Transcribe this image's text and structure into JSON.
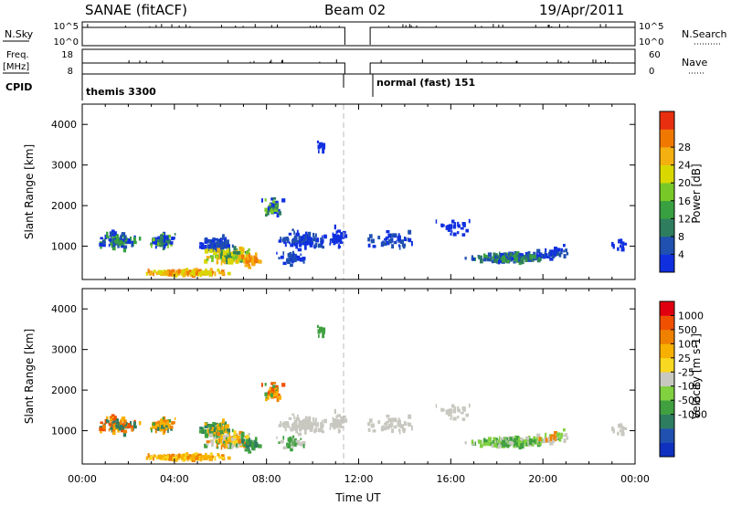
{
  "header": {
    "title": "SANAE (fitACF)",
    "beam": "Beam 02",
    "date": "19/Apr/2011"
  },
  "top_panels": {
    "nsky_label": "N.Sky",
    "nsearch_label": "N.Search",
    "freq_label_line1": "Freq.",
    "freq_label_line2": "[MHz]",
    "nave_label": "Nave",
    "cpid_label": "CPID",
    "nsky_ticks": [
      "10^5",
      "10^0"
    ],
    "nsearch_ticks": [
      "10^5",
      "10^0"
    ],
    "freq_ticks": [
      "18",
      "8"
    ],
    "nave_ticks": [
      "60",
      "0"
    ],
    "cpid_segments": [
      {
        "label": "themis 3300",
        "start_h": 0.0,
        "end_h": 11.4
      },
      {
        "label": "normal (fast) 151",
        "start_h": 12.5,
        "end_h": 24.0
      }
    ]
  },
  "colors": {
    "power": [
      "#1030e0",
      "#2050b0",
      "#2e7d5e",
      "#38a040",
      "#78c828",
      "#d8d800",
      "#f4b010",
      "#f07800",
      "#e83010"
    ],
    "velocity": [
      "#e00010",
      "#f05000",
      "#f08000",
      "#f8b000",
      "#f8d820",
      "#c8c8c0",
      "#80d040",
      "#40a040",
      "#2e7d60",
      "#2050b0",
      "#1030c0"
    ]
  },
  "chart_data": [
    {
      "type": "heatmap",
      "name": "power",
      "xlabel": "",
      "ylabel": "Slant Range [km]",
      "xlim": [
        0,
        24
      ],
      "ylim": [
        180,
        4500
      ],
      "yticks": [
        "1000",
        "2000",
        "3000",
        "4000"
      ],
      "colorbar_label": "Power [dB]",
      "colorbar_ticks": [
        "4",
        "8",
        "12",
        "16",
        "20",
        "24",
        "28"
      ],
      "clim": [
        0,
        32
      ],
      "blobs": [
        {
          "t": 1.5,
          "r": 1150,
          "dt": 1.1,
          "dr": 260,
          "n": 95,
          "lvl": [
            0,
            1,
            3
          ]
        },
        {
          "t": 3.4,
          "r": 1100,
          "dt": 0.7,
          "dr": 240,
          "n": 80,
          "lvl": [
            0,
            2,
            4
          ]
        },
        {
          "t": 5.8,
          "r": 1050,
          "dt": 0.9,
          "dr": 230,
          "n": 80,
          "lvl": [
            0,
            1
          ]
        },
        {
          "t": 6.3,
          "r": 750,
          "dt": 1.3,
          "dr": 260,
          "n": 150,
          "lvl": [
            2,
            4,
            5,
            6
          ]
        },
        {
          "t": 4.4,
          "r": 350,
          "dt": 2.2,
          "dr": 100,
          "n": 130,
          "lvl": [
            5,
            6,
            7
          ]
        },
        {
          "t": 7.3,
          "r": 640,
          "dt": 0.5,
          "dr": 180,
          "n": 40,
          "lvl": [
            6,
            7
          ]
        },
        {
          "t": 8.2,
          "r": 1950,
          "dt": 0.5,
          "dr": 280,
          "n": 55,
          "lvl": [
            0,
            2,
            4
          ]
        },
        {
          "t": 9.6,
          "r": 1150,
          "dt": 1.6,
          "dr": 300,
          "n": 90,
          "lvl": [
            0,
            1
          ]
        },
        {
          "t": 9.0,
          "r": 700,
          "dt": 0.8,
          "dr": 200,
          "n": 45,
          "lvl": [
            0,
            1
          ]
        },
        {
          "t": 11.0,
          "r": 1250,
          "dt": 0.4,
          "dr": 320,
          "n": 35,
          "lvl": [
            0
          ]
        },
        {
          "t": 10.3,
          "r": 3450,
          "dt": 0.25,
          "dr": 250,
          "n": 8,
          "lvl": [
            0
          ]
        },
        {
          "t": 13.4,
          "r": 1150,
          "dt": 1.3,
          "dr": 300,
          "n": 45,
          "lvl": [
            0,
            1
          ]
        },
        {
          "t": 16.0,
          "r": 1450,
          "dt": 1.0,
          "dr": 300,
          "n": 25,
          "lvl": [
            0
          ]
        },
        {
          "t": 18.6,
          "r": 720,
          "dt": 2.2,
          "dr": 150,
          "n": 190,
          "lvl": [
            0,
            1,
            2,
            3
          ]
        },
        {
          "t": 20.4,
          "r": 850,
          "dt": 0.8,
          "dr": 200,
          "n": 30,
          "lvl": [
            0,
            1
          ]
        },
        {
          "t": 23.3,
          "r": 1000,
          "dt": 0.5,
          "dr": 200,
          "n": 12,
          "lvl": [
            0
          ]
        }
      ]
    },
    {
      "type": "heatmap",
      "name": "velocity",
      "xlabel": "Time UT",
      "ylabel": "Slant Range [km]",
      "xlim": [
        0,
        24
      ],
      "ylim": [
        180,
        4500
      ],
      "xticks": [
        "00:00",
        "04:00",
        "08:00",
        "12:00",
        "16:00",
        "20:00",
        "00:00"
      ],
      "yticks": [
        "1000",
        "2000",
        "3000",
        "4000"
      ],
      "colorbar_label": "Velocity [m s-1]",
      "colorbar_ticks": [
        "1000",
        "500",
        "100",
        "25",
        "-25",
        "-100",
        "-500",
        "-1000"
      ],
      "blobs": [
        {
          "t": 1.5,
          "r": 1150,
          "dt": 1.1,
          "dr": 260,
          "n": 95,
          "lvl": [
            1,
            2,
            3,
            8
          ]
        },
        {
          "t": 3.4,
          "r": 1100,
          "dt": 0.7,
          "dr": 240,
          "n": 80,
          "lvl": [
            2,
            3,
            8,
            7
          ]
        },
        {
          "t": 5.8,
          "r": 1050,
          "dt": 0.9,
          "dr": 230,
          "n": 80,
          "lvl": [
            8,
            7,
            3
          ]
        },
        {
          "t": 6.3,
          "r": 750,
          "dt": 1.3,
          "dr": 260,
          "n": 150,
          "lvl": [
            3,
            4,
            5,
            7,
            2
          ]
        },
        {
          "t": 4.4,
          "r": 350,
          "dt": 2.2,
          "dr": 100,
          "n": 130,
          "lvl": [
            3,
            4,
            2
          ]
        },
        {
          "t": 7.3,
          "r": 640,
          "dt": 0.5,
          "dr": 180,
          "n": 40,
          "lvl": [
            7,
            8
          ]
        },
        {
          "t": 8.2,
          "r": 1950,
          "dt": 0.5,
          "dr": 280,
          "n": 55,
          "lvl": [
            1,
            2,
            3,
            7
          ]
        },
        {
          "t": 9.6,
          "r": 1150,
          "dt": 1.6,
          "dr": 300,
          "n": 90,
          "lvl": [
            5
          ]
        },
        {
          "t": 9.0,
          "r": 700,
          "dt": 0.8,
          "dr": 200,
          "n": 45,
          "lvl": [
            5,
            7
          ]
        },
        {
          "t": 11.0,
          "r": 1250,
          "dt": 0.4,
          "dr": 320,
          "n": 35,
          "lvl": [
            5
          ]
        },
        {
          "t": 10.3,
          "r": 3450,
          "dt": 0.25,
          "dr": 250,
          "n": 8,
          "lvl": [
            7
          ]
        },
        {
          "t": 13.4,
          "r": 1150,
          "dt": 1.3,
          "dr": 300,
          "n": 45,
          "lvl": [
            5
          ]
        },
        {
          "t": 16.0,
          "r": 1450,
          "dt": 1.0,
          "dr": 300,
          "n": 25,
          "lvl": [
            5
          ]
        },
        {
          "t": 18.6,
          "r": 720,
          "dt": 2.2,
          "dr": 150,
          "n": 190,
          "lvl": [
            5,
            6,
            7
          ]
        },
        {
          "t": 20.4,
          "r": 850,
          "dt": 0.8,
          "dr": 200,
          "n": 30,
          "lvl": [
            2,
            6,
            5
          ]
        },
        {
          "t": 23.3,
          "r": 1000,
          "dt": 0.5,
          "dr": 200,
          "n": 12,
          "lvl": [
            5
          ]
        }
      ]
    }
  ]
}
